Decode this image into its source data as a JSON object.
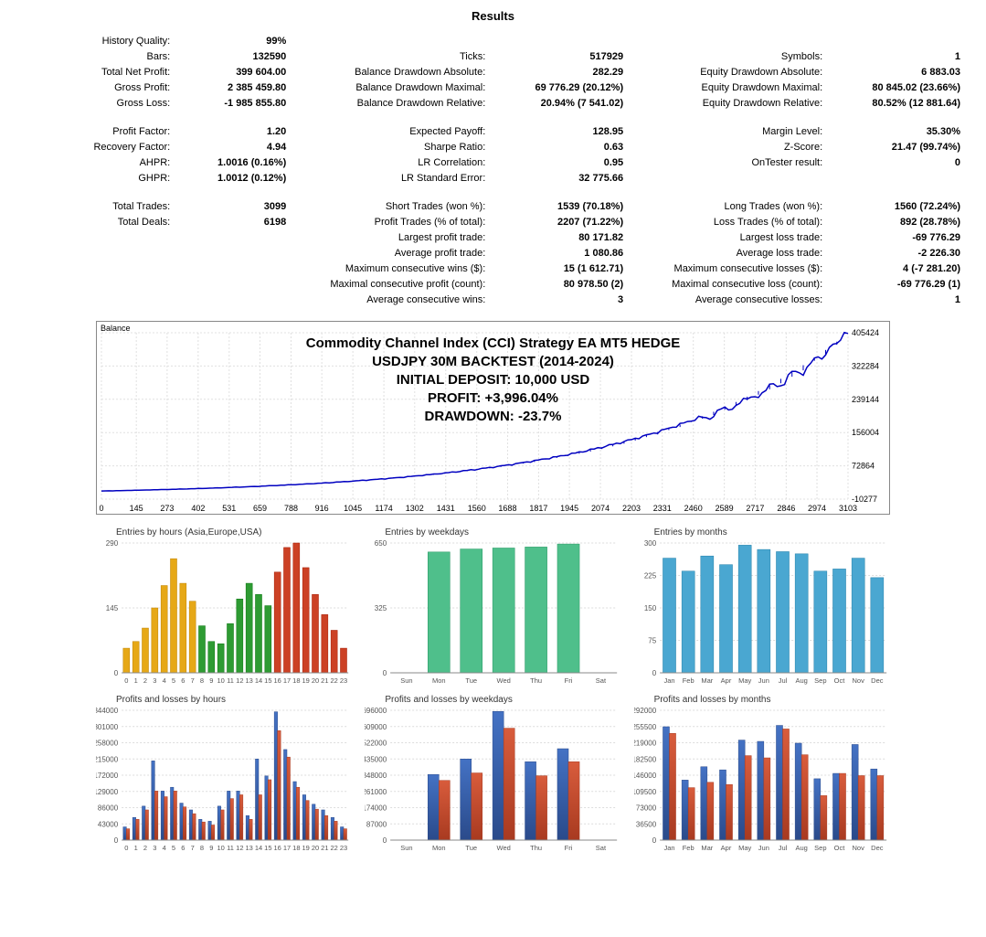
{
  "title": "Results",
  "stats": {
    "block1": {
      "row1": {
        "l1": "History Quality:",
        "v1": "99%"
      },
      "row2": {
        "l1": "Bars:",
        "v1": "132590",
        "l2": "Ticks:",
        "v2": "517929",
        "l3": "Symbols:",
        "v3": "1"
      },
      "row3": {
        "l1": "Total Net Profit:",
        "v1": "399 604.00",
        "l2": "Balance Drawdown Absolute:",
        "v2": "282.29",
        "l3": "Equity Drawdown Absolute:",
        "v3": "6 883.03"
      },
      "row4": {
        "l1": "Gross Profit:",
        "v1": "2 385 459.80",
        "l2": "Balance Drawdown Maximal:",
        "v2": "69 776.29 (20.12%)",
        "l3": "Equity Drawdown Maximal:",
        "v3": "80 845.02 (23.66%)"
      },
      "row5": {
        "l1": "Gross Loss:",
        "v1": "-1 985 855.80",
        "l2": "Balance Drawdown Relative:",
        "v2": "20.94% (7 541.02)",
        "l3": "Equity Drawdown Relative:",
        "v3": "80.52% (12 881.64)"
      }
    },
    "block2": {
      "row1": {
        "l1": "Profit Factor:",
        "v1": "1.20",
        "l2": "Expected Payoff:",
        "v2": "128.95",
        "l3": "Margin Level:",
        "v3": "35.30%"
      },
      "row2": {
        "l1": "Recovery Factor:",
        "v1": "4.94",
        "l2": "Sharpe Ratio:",
        "v2": "0.63",
        "l3": "Z-Score:",
        "v3": "21.47 (99.74%)"
      },
      "row3": {
        "l1": "AHPR:",
        "v1": "1.0016 (0.16%)",
        "l2": "LR Correlation:",
        "v2": "0.95",
        "l3": "OnTester result:",
        "v3": "0"
      },
      "row4": {
        "l1": "GHPR:",
        "v1": "1.0012 (0.12%)",
        "l2": "LR Standard Error:",
        "v2": "32 775.66"
      }
    },
    "block3": {
      "row1": {
        "l1": "Total Trades:",
        "v1": "3099",
        "l2": "Short Trades (won %):",
        "v2": "1539 (70.18%)",
        "l3": "Long Trades (won %):",
        "v3": "1560 (72.24%)"
      },
      "row2": {
        "l1": "Total Deals:",
        "v1": "6198",
        "l2": "Profit Trades (% of total):",
        "v2": "2207 (71.22%)",
        "l3": "Loss Trades (% of total):",
        "v3": "892 (28.78%)"
      },
      "row3": {
        "l2": "Largest profit trade:",
        "v2": "80 171.82",
        "l3": "Largest loss trade:",
        "v3": "-69 776.29"
      },
      "row4": {
        "l2": "Average profit trade:",
        "v2": "1 080.86",
        "l3": "Average loss trade:",
        "v3": "-2 226.30"
      },
      "row5": {
        "l2": "Maximum consecutive wins ($):",
        "v2": "15 (1 612.71)",
        "l3": "Maximum consecutive losses ($):",
        "v3": "4 (-7 281.20)"
      },
      "row6": {
        "l2": "Maximal consecutive profit (count):",
        "v2": "80 978.50 (2)",
        "l3": "Maximal consecutive loss (count):",
        "v3": "-69 776.29 (1)"
      },
      "row7": {
        "l2": "Average consecutive wins:",
        "v2": "3",
        "l3": "Average consecutive losses:",
        "v3": "1"
      }
    }
  },
  "balance_chart": {
    "type": "line",
    "label": "Balance",
    "overlay": {
      "line1": "Commodity Channel Index (CCI) Strategy EA MT5 HEDGE",
      "line2": "USDJPY 30M BACKTEST (2014-2024)",
      "line3": "INITIAL DEPOSIT: 10,000 USD",
      "line4": "PROFIT: +3,996.04%",
      "line5": "DRAWDOWN: -23.7%"
    },
    "x_ticks": [
      0,
      145,
      273,
      402,
      531,
      659,
      788,
      916,
      1045,
      1174,
      1302,
      1431,
      1560,
      1688,
      1817,
      1945,
      2074,
      2203,
      2331,
      2460,
      2589,
      2717,
      2846,
      2974,
      3103
    ],
    "y_ticks": [
      -10277,
      72864,
      156004,
      239144,
      322284,
      405424
    ],
    "line_color": "#0000c0",
    "grid_color": "#e0e0e0",
    "background_color": "#ffffff"
  },
  "charts": {
    "entries_hours": {
      "title": "Entries by hours (Asia,Europe,USA)",
      "type": "bar",
      "ymax": 290,
      "yticks": [
        0,
        145,
        290
      ],
      "labels": [
        "0",
        "1",
        "2",
        "3",
        "4",
        "5",
        "6",
        "7",
        "8",
        "9",
        "10",
        "11",
        "12",
        "13",
        "14",
        "15",
        "16",
        "17",
        "18",
        "19",
        "20",
        "21",
        "22",
        "23"
      ],
      "values": [
        55,
        70,
        100,
        145,
        195,
        255,
        200,
        160,
        105,
        70,
        65,
        110,
        165,
        200,
        175,
        150,
        225,
        280,
        290,
        235,
        175,
        130,
        95,
        55
      ],
      "colors": [
        "#e6a817",
        "#e6a817",
        "#e6a817",
        "#e6a817",
        "#e6a817",
        "#e6a817",
        "#e6a817",
        "#e6a817",
        "#2e9b33",
        "#2e9b33",
        "#2e9b33",
        "#2e9b33",
        "#2e9b33",
        "#2e9b33",
        "#2e9b33",
        "#2e9b33",
        "#cc4125",
        "#cc4125",
        "#cc4125",
        "#cc4125",
        "#cc4125",
        "#cc4125",
        "#cc4125",
        "#cc4125"
      ]
    },
    "entries_weekdays": {
      "title": "Entries by weekdays",
      "type": "bar",
      "ymax": 650,
      "yticks": [
        0,
        325,
        650
      ],
      "labels": [
        "Sun",
        "Mon",
        "Tue",
        "Wed",
        "Thu",
        "Fri",
        "Sat"
      ],
      "values": [
        0,
        605,
        620,
        625,
        630,
        645,
        0
      ],
      "colors": [
        "#4fbf8b",
        "#4fbf8b",
        "#4fbf8b",
        "#4fbf8b",
        "#4fbf8b",
        "#4fbf8b",
        "#4fbf8b"
      ]
    },
    "entries_months": {
      "title": "Entries by months",
      "type": "bar",
      "ymax": 300,
      "yticks": [
        0,
        75,
        150,
        225,
        300
      ],
      "labels": [
        "Jan",
        "Feb",
        "Mar",
        "Apr",
        "May",
        "Jun",
        "Jul",
        "Aug",
        "Sep",
        "Oct",
        "Nov",
        "Dec"
      ],
      "values": [
        265,
        235,
        270,
        250,
        295,
        285,
        280,
        275,
        235,
        240,
        265,
        220
      ],
      "colors": [
        "#4aa7d1",
        "#4aa7d1",
        "#4aa7d1",
        "#4aa7d1",
        "#4aa7d1",
        "#4aa7d1",
        "#4aa7d1",
        "#4aa7d1",
        "#4aa7d1",
        "#4aa7d1",
        "#4aa7d1",
        "#4aa7d1"
      ]
    },
    "pl_hours": {
      "title": "Profits and losses by hours",
      "type": "grouped_bar",
      "ymax": 344000,
      "yticks": [
        0,
        43000,
        86000,
        129000,
        172000,
        215000,
        258000,
        301000,
        344000
      ],
      "labels": [
        "0",
        "1",
        "2",
        "3",
        "4",
        "5",
        "6",
        "7",
        "8",
        "9",
        "10",
        "11",
        "12",
        "13",
        "14",
        "15",
        "16",
        "17",
        "18",
        "19",
        "20",
        "21",
        "22",
        "23"
      ],
      "series1": [
        35000,
        60000,
        90000,
        210000,
        130000,
        140000,
        98000,
        80000,
        55000,
        50000,
        90000,
        130000,
        130000,
        65000,
        215000,
        170000,
        340000,
        240000,
        155000,
        120000,
        95000,
        80000,
        60000,
        35000
      ],
      "series2": [
        30000,
        55000,
        80000,
        130000,
        115000,
        130000,
        88000,
        70000,
        48000,
        40000,
        80000,
        110000,
        120000,
        55000,
        120000,
        160000,
        290000,
        220000,
        140000,
        105000,
        82000,
        65000,
        50000,
        30000
      ],
      "color1": "#4472c4",
      "color2": "#d85c3c"
    },
    "pl_weekdays": {
      "title": "Profits and losses by weekdays",
      "type": "grouped_bar",
      "ymax": 696000,
      "yticks": [
        0,
        87000,
        174000,
        261000,
        348000,
        435000,
        522000,
        609000,
        696000
      ],
      "labels": [
        "Sun",
        "Mon",
        "Tue",
        "Wed",
        "Thu",
        "Fri",
        "Sat"
      ],
      "series1": [
        0,
        352000,
        435000,
        690000,
        420000,
        490000,
        0
      ],
      "series2": [
        0,
        320000,
        360000,
        600000,
        345000,
        420000,
        0
      ],
      "color1": "#4472c4",
      "color2": "#d85c3c"
    },
    "pl_months": {
      "title": "Profits and losses by months",
      "type": "grouped_bar",
      "ymax": 292000,
      "yticks": [
        0,
        36500,
        73000,
        109500,
        146000,
        182500,
        219000,
        255500,
        292000
      ],
      "labels": [
        "Jan",
        "Feb",
        "Mar",
        "Apr",
        "May",
        "Jun",
        "Jul",
        "Aug",
        "Sep",
        "Oct",
        "Nov",
        "Dec"
      ],
      "series1": [
        255000,
        135000,
        165000,
        158000,
        225000,
        222000,
        258000,
        218000,
        138000,
        150000,
        215000,
        160000
      ],
      "series2": [
        240000,
        118000,
        130000,
        125000,
        190000,
        185000,
        250000,
        192000,
        100000,
        150000,
        145000,
        145000
      ],
      "color1": "#4472c4",
      "color2": "#d85c3c"
    }
  }
}
